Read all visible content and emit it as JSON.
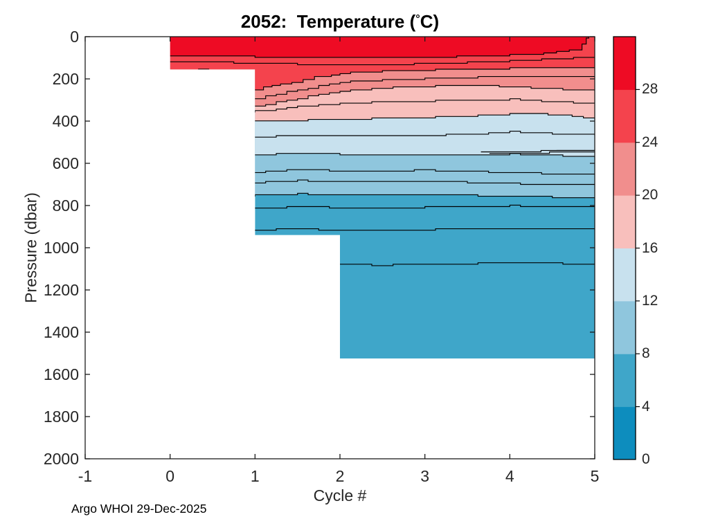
{
  "figure": {
    "title": {
      "pre": "2052:  Temperature (",
      "degree": "°",
      "post": "C)"
    },
    "x_axis": {
      "label": "Cycle #",
      "ticks": [
        -1,
        0,
        1,
        2,
        3,
        4,
        5
      ]
    },
    "y_axis": {
      "label": "Pressure (dbar)",
      "ticks": [
        0,
        200,
        400,
        600,
        800,
        1000,
        1200,
        1400,
        1600,
        1800,
        2000
      ]
    },
    "footer": "Argo WHOI 29-Dec-2025"
  },
  "chart_data": {
    "type": "filled_contour",
    "title": "2052:  Temperature (°C)",
    "xlabel": "Cycle #",
    "ylabel": "Pressure (dbar)",
    "x_range": [
      -1,
      5
    ],
    "y_range": [
      0,
      2000
    ],
    "y_axis_reversed": true,
    "units": "degC",
    "grid": false,
    "colorbar": {
      "position": "right",
      "min": 0,
      "max": 32,
      "band_step": 4,
      "ticks": [
        0,
        4,
        8,
        12,
        16,
        20,
        24,
        28
      ],
      "band_labels_bottom_to_top": [
        "0-4",
        "4-8",
        "8-12",
        "12-16",
        "16-20",
        "20-24",
        "24-28",
        "28-32"
      ],
      "colors_bottom_to_top": [
        "#0D8DBE",
        "#3FA6C9",
        "#8FC6DD",
        "#C8E1EE",
        "#F8BFBC",
        "#F18E8D",
        "#F4434D",
        "#EE0B24"
      ]
    },
    "data_region_steps": [
      {
        "cycle_start": 0,
        "cycle_end": 1,
        "max_pressure_dbar": 155
      },
      {
        "cycle_start": 1,
        "cycle_end": 2,
        "max_pressure_dbar": 940
      },
      {
        "cycle_start": 2,
        "cycle_end": 5,
        "max_pressure_dbar": 1525
      }
    ],
    "fill_boundary_levels_c": [
      8,
      12,
      16,
      20,
      24,
      28
    ],
    "fill_colors_shallow_to_deep": [
      "#EE0B24",
      "#F4434D",
      "#F18E8D",
      "#F8BFBC",
      "#C8E1EE",
      "#8FC6DD",
      "#3FA6C9"
    ],
    "base_deep_band_color": "#3FA6C9",
    "contour_line_color": "#000000",
    "contour_lines": [
      {
        "level_c": 28,
        "points_cycle_dbar": [
          [
            0,
            90
          ],
          [
            0.5,
            92
          ],
          [
            1,
            95
          ],
          [
            1.5,
            98
          ],
          [
            2,
            101
          ],
          [
            2.5,
            100
          ],
          [
            3,
            97
          ],
          [
            3.5,
            93
          ],
          [
            4,
            87
          ],
          [
            4.4,
            79
          ],
          [
            4.7,
            66
          ],
          [
            4.85,
            34
          ],
          [
            4.9,
            8
          ],
          [
            4.93,
            0
          ]
        ]
      },
      {
        "level_c": 26,
        "points_cycle_dbar": [
          [
            0,
            116
          ],
          [
            0.5,
            120
          ],
          [
            1,
            126
          ],
          [
            1.5,
            130
          ],
          [
            2,
            133
          ],
          [
            2.5,
            131
          ],
          [
            3,
            128
          ],
          [
            3.5,
            122
          ],
          [
            4,
            114
          ],
          [
            4.5,
            105
          ],
          [
            5,
            97
          ]
        ]
      },
      {
        "level_c": 24,
        "points_cycle_dbar": [
          [
            0,
            256
          ],
          [
            0.5,
            253
          ],
          [
            1,
            249
          ],
          [
            1.3,
            226
          ],
          [
            1.7,
            192
          ],
          [
            2,
            173
          ],
          [
            2.5,
            163
          ],
          [
            3,
            158
          ],
          [
            3.5,
            153
          ],
          [
            4,
            150
          ],
          [
            4.5,
            147
          ],
          [
            5,
            144
          ]
        ]
      },
      {
        "level_c": 22,
        "points_cycle_dbar": [
          [
            0,
            300
          ],
          [
            0.5,
            297
          ],
          [
            1,
            292
          ],
          [
            1.5,
            252
          ],
          [
            2,
            216
          ],
          [
            2.5,
            205
          ],
          [
            3,
            198
          ],
          [
            3.5,
            193
          ],
          [
            4,
            190
          ],
          [
            4.5,
            188
          ],
          [
            5,
            186
          ]
        ]
      },
      {
        "level_c": 20,
        "points_cycle_dbar": [
          [
            0,
            342
          ],
          [
            0.5,
            336
          ],
          [
            1,
            328
          ],
          [
            1.5,
            291
          ],
          [
            2,
            259
          ],
          [
            2.5,
            243
          ],
          [
            3,
            235
          ],
          [
            3.5,
            232
          ],
          [
            4,
            236
          ],
          [
            4.5,
            247
          ],
          [
            5,
            256
          ]
        ]
      },
      {
        "level_c": 18,
        "points_cycle_dbar": [
          [
            0,
            368
          ],
          [
            0.5,
            360
          ],
          [
            1,
            352
          ],
          [
            1.5,
            332
          ],
          [
            2,
            316
          ],
          [
            2.5,
            309
          ],
          [
            3,
            305
          ],
          [
            3.5,
            300
          ],
          [
            4,
            297
          ],
          [
            4.5,
            307
          ],
          [
            5,
            318
          ]
        ]
      },
      {
        "level_c": 16,
        "points_cycle_dbar": [
          [
            0,
            408
          ],
          [
            0.5,
            404
          ],
          [
            1,
            400
          ],
          [
            1.5,
            396
          ],
          [
            2,
            392
          ],
          [
            2.5,
            387
          ],
          [
            3,
            382
          ],
          [
            3.5,
            375
          ],
          [
            4,
            366
          ],
          [
            4.3,
            364
          ],
          [
            4.6,
            374
          ],
          [
            5,
            391
          ]
        ]
      },
      {
        "level_c": 14,
        "points_cycle_dbar": [
          [
            0,
            483
          ],
          [
            0.5,
            479
          ],
          [
            1,
            475
          ],
          [
            1.5,
            467
          ],
          [
            2,
            472
          ],
          [
            2.5,
            471
          ],
          [
            3,
            469
          ],
          [
            3.5,
            461
          ],
          [
            4,
            451
          ],
          [
            4.5,
            459
          ],
          [
            5,
            467
          ]
        ]
      },
      {
        "level_c": 12,
        "points_cycle_dbar": [
          [
            0,
            566
          ],
          [
            0.5,
            563
          ],
          [
            1,
            559
          ],
          [
            1.5,
            551
          ],
          [
            2,
            557
          ],
          [
            2.5,
            559
          ],
          [
            3,
            560
          ],
          [
            3.5,
            558
          ],
          [
            4,
            556
          ],
          [
            4.5,
            562
          ],
          [
            5,
            571
          ]
        ]
      },
      {
        "level_c": 10,
        "points_cycle_dbar": [
          [
            0,
            649
          ],
          [
            0.5,
            645
          ],
          [
            1,
            641
          ],
          [
            1.5,
            630
          ],
          [
            2,
            636
          ],
          [
            2.5,
            634
          ],
          [
            3,
            633
          ],
          [
            3.5,
            638
          ],
          [
            4,
            645
          ],
          [
            4.5,
            649
          ],
          [
            5,
            652
          ]
        ]
      },
      {
        "level_c": 9,
        "points_cycle_dbar": [
          [
            0,
            699
          ],
          [
            1,
            691
          ],
          [
            1.5,
            681
          ],
          [
            2,
            688
          ],
          [
            2.5,
            687
          ],
          [
            3,
            686
          ],
          [
            3.5,
            690
          ],
          [
            4,
            696
          ],
          [
            4.5,
            700
          ],
          [
            5,
            702
          ]
        ]
      },
      {
        "level_c": 8,
        "points_cycle_dbar": [
          [
            0,
            762
          ],
          [
            1,
            752
          ],
          [
            1.5,
            744
          ],
          [
            2,
            750
          ],
          [
            2.5,
            749
          ],
          [
            3,
            748
          ],
          [
            3.5,
            752
          ],
          [
            4,
            757
          ],
          [
            4.5,
            760
          ],
          [
            5,
            762
          ]
        ]
      },
      {
        "level_c": 7,
        "points_cycle_dbar": [
          [
            0,
            818
          ],
          [
            1,
            812
          ],
          [
            1.5,
            806
          ],
          [
            2,
            810
          ],
          [
            2.5,
            812
          ],
          [
            3,
            808
          ],
          [
            3.5,
            804
          ],
          [
            4,
            801
          ],
          [
            4.5,
            806
          ],
          [
            5,
            808
          ]
        ]
      },
      {
        "level_c": 6,
        "points_cycle_dbar": [
          [
            0,
            926
          ],
          [
            1,
            915
          ],
          [
            1.5,
            911
          ],
          [
            2,
            916
          ],
          [
            2.5,
            917
          ],
          [
            3,
            914
          ],
          [
            3.5,
            910
          ],
          [
            4,
            908
          ],
          [
            4.5,
            911
          ],
          [
            5,
            914
          ]
        ]
      },
      {
        "level_c": 5,
        "points_cycle_dbar": [
          [
            0,
            1083
          ],
          [
            1,
            1081
          ],
          [
            2,
            1080
          ],
          [
            2.5,
            1082
          ],
          [
            3,
            1078
          ],
          [
            3.5,
            1075
          ],
          [
            4,
            1071
          ],
          [
            4.5,
            1074
          ],
          [
            5,
            1077
          ]
        ]
      }
    ],
    "extra_line_fragments": [
      {
        "points_cycle_dbar": [
          [
            3.66,
            543
          ],
          [
            4.1,
            545
          ],
          [
            4.5,
            539
          ],
          [
            5,
            539
          ]
        ]
      },
      {
        "points_cycle_dbar": [
          [
            3.76,
            551
          ],
          [
            4.2,
            552
          ],
          [
            4.6,
            545
          ],
          [
            5,
            545
          ]
        ]
      },
      {
        "points_cycle_dbar": [
          [
            4.55,
            542
          ],
          [
            5,
            542
          ]
        ]
      },
      {
        "points_cycle_dbar": [
          [
            0.33,
            152
          ],
          [
            0.46,
            152
          ]
        ]
      }
    ]
  }
}
